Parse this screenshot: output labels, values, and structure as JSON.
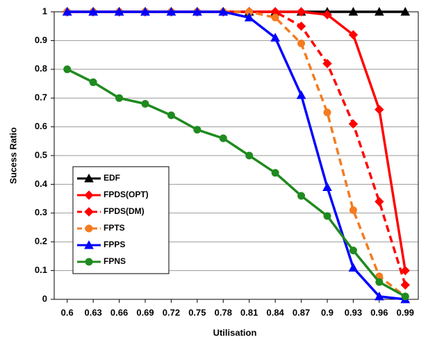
{
  "chart_data": {
    "type": "line",
    "x_label": "Utilisation",
    "y_label": "Sucess Ratio",
    "x": [
      0.6,
      0.63,
      0.66,
      0.69,
      0.72,
      0.75,
      0.78,
      0.81,
      0.84,
      0.87,
      0.9,
      0.93,
      0.96,
      0.99
    ],
    "xlim": [
      0.585,
      1.005
    ],
    "xticks": [
      0.6,
      0.63,
      0.66,
      0.69,
      0.72,
      0.75,
      0.78,
      0.81,
      0.84,
      0.87,
      0.9,
      0.93,
      0.96,
      0.99
    ],
    "ylim": [
      0,
      1
    ],
    "yticks": [
      0,
      0.1,
      0.2,
      0.3,
      0.4,
      0.5,
      0.6,
      0.7,
      0.8,
      0.9,
      1
    ],
    "grid": true,
    "legend": "lower left",
    "series": [
      {
        "name": "EDF",
        "color": "#000000",
        "marker": "triangle",
        "dash": false,
        "values": [
          1,
          1,
          1,
          1,
          1,
          1,
          1,
          1,
          1,
          1,
          1,
          1,
          1,
          1
        ]
      },
      {
        "name": "FPDS(OPT)",
        "color": "#ff0000",
        "marker": "diamond",
        "dash": false,
        "values": [
          1,
          1,
          1,
          1,
          1,
          1,
          1,
          1,
          1,
          1,
          0.99,
          0.92,
          0.66,
          0.1
        ]
      },
      {
        "name": "FPDS(DM)",
        "color": "#ff0000",
        "marker": "diamond",
        "dash": true,
        "values": [
          1,
          1,
          1,
          1,
          1,
          1,
          1,
          1,
          1,
          0.95,
          0.82,
          0.61,
          0.34,
          0.05
        ]
      },
      {
        "name": "FPTS",
        "color": "#f47b20",
        "marker": "circle",
        "dash": true,
        "values": [
          1,
          1,
          1,
          1,
          1,
          1,
          1,
          1,
          0.98,
          0.89,
          0.65,
          0.31,
          0.08,
          0.01
        ]
      },
      {
        "name": "FPPS",
        "color": "#0000ff",
        "marker": "triangle",
        "dash": false,
        "values": [
          1,
          1,
          1,
          1,
          1,
          1,
          1,
          0.98,
          0.91,
          0.71,
          0.39,
          0.11,
          0.01,
          0
        ]
      },
      {
        "name": "FPNS",
        "color": "#1f8a1f",
        "marker": "circle",
        "dash": false,
        "values": [
          0.8,
          0.755,
          0.7,
          0.68,
          0.64,
          0.59,
          0.56,
          0.5,
          0.44,
          0.36,
          0.29,
          0.17,
          0.06,
          0.01
        ]
      }
    ]
  }
}
